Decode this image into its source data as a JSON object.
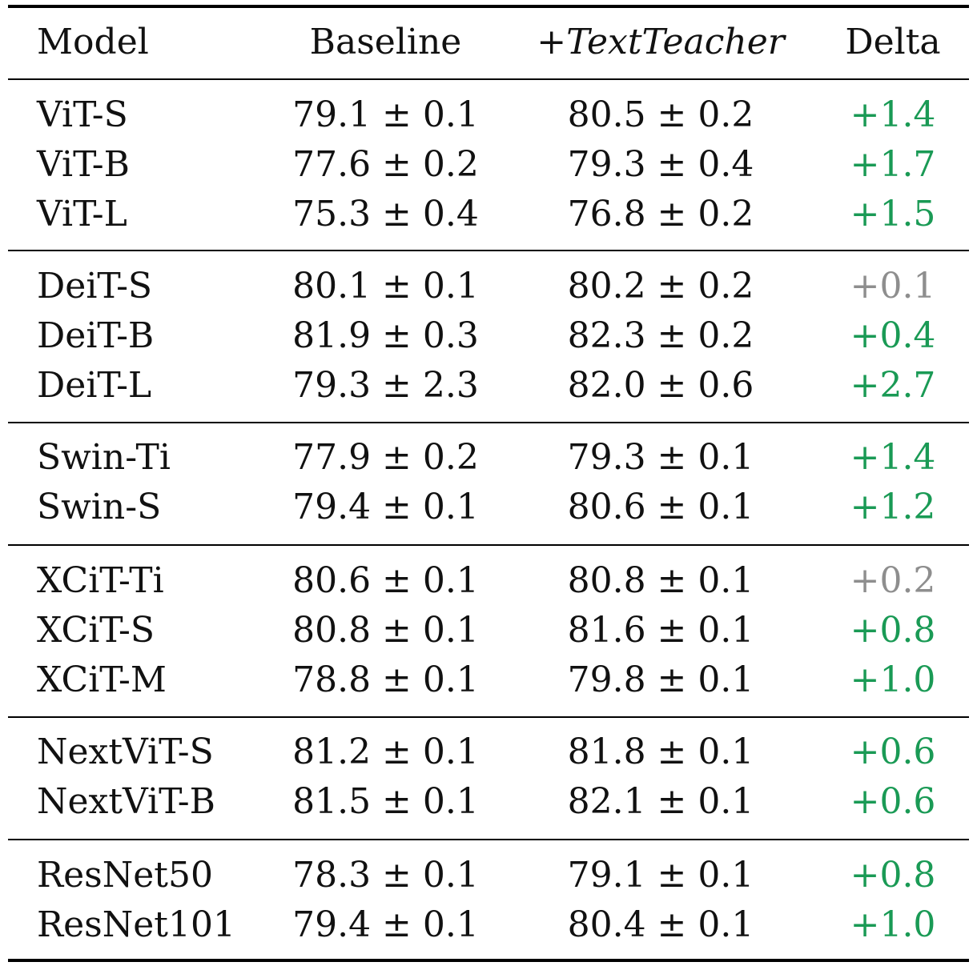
{
  "colors": {
    "positive_delta": "#1a9a55",
    "small_delta": "#8e8e8e",
    "text": "#111111"
  },
  "header": {
    "model": "Model",
    "baseline": "Baseline",
    "teacher_prefix": "+",
    "teacher_name": "TextTeacher",
    "delta": "Delta"
  },
  "groups": [
    {
      "rows": [
        {
          "model": "ViT-S",
          "baseline": "79.1 ± 0.1",
          "teacher": "80.5 ± 0.2",
          "delta": "+1.4",
          "delta_style": "positive"
        },
        {
          "model": "ViT-B",
          "baseline": "77.6 ± 0.2",
          "teacher": "79.3 ± 0.4",
          "delta": "+1.7",
          "delta_style": "positive"
        },
        {
          "model": "ViT-L",
          "baseline": "75.3 ± 0.4",
          "teacher": "76.8 ± 0.2",
          "delta": "+1.5",
          "delta_style": "positive"
        }
      ]
    },
    {
      "rows": [
        {
          "model": "DeiT-S",
          "baseline": "80.1 ± 0.1",
          "teacher": "80.2 ± 0.2",
          "delta": "+0.1",
          "delta_style": "neutral"
        },
        {
          "model": "DeiT-B",
          "baseline": "81.9 ± 0.3",
          "teacher": "82.3 ± 0.2",
          "delta": "+0.4",
          "delta_style": "positive"
        },
        {
          "model": "DeiT-L",
          "baseline": "79.3 ± 2.3",
          "teacher": "82.0 ± 0.6",
          "delta": "+2.7",
          "delta_style": "positive"
        }
      ]
    },
    {
      "rows": [
        {
          "model": "Swin-Ti",
          "baseline": "77.9 ± 0.2",
          "teacher": "79.3 ± 0.1",
          "delta": "+1.4",
          "delta_style": "positive"
        },
        {
          "model": "Swin-S",
          "baseline": "79.4 ± 0.1",
          "teacher": "80.6 ± 0.1",
          "delta": "+1.2",
          "delta_style": "positive"
        }
      ]
    },
    {
      "rows": [
        {
          "model": "XCiT-Ti",
          "baseline": "80.6 ± 0.1",
          "teacher": "80.8 ± 0.1",
          "delta": "+0.2",
          "delta_style": "neutral"
        },
        {
          "model": "XCiT-S",
          "baseline": "80.8 ± 0.1",
          "teacher": "81.6 ± 0.1",
          "delta": "+0.8",
          "delta_style": "positive"
        },
        {
          "model": "XCiT-M",
          "baseline": "78.8 ± 0.1",
          "teacher": "79.8 ± 0.1",
          "delta": "+1.0",
          "delta_style": "positive"
        }
      ]
    },
    {
      "rows": [
        {
          "model": "NextViT-S",
          "baseline": "81.2 ± 0.1",
          "teacher": "81.8 ± 0.1",
          "delta": "+0.6",
          "delta_style": "positive"
        },
        {
          "model": "NextViT-B",
          "baseline": "81.5 ± 0.1",
          "teacher": "82.1 ± 0.1",
          "delta": "+0.6",
          "delta_style": "positive"
        }
      ]
    },
    {
      "rows": [
        {
          "model": "ResNet50",
          "baseline": "78.3 ± 0.1",
          "teacher": "79.1 ± 0.1",
          "delta": "+0.8",
          "delta_style": "positive"
        },
        {
          "model": "ResNet101",
          "baseline": "79.4 ± 0.1",
          "teacher": "80.4 ± 0.1",
          "delta": "+1.0",
          "delta_style": "positive"
        }
      ]
    }
  ]
}
